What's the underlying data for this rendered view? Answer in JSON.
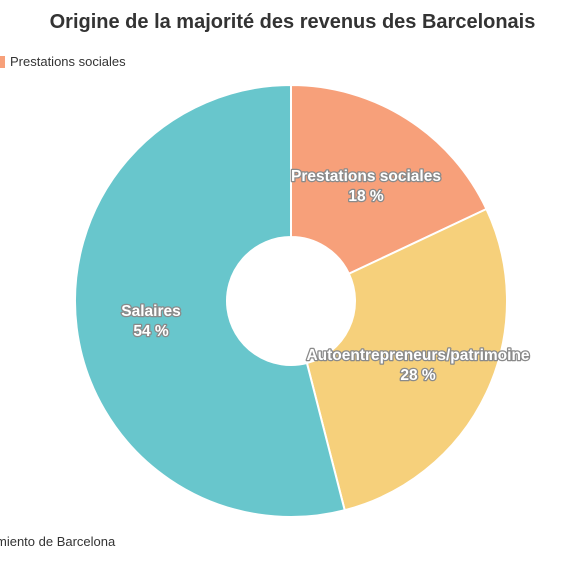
{
  "chart_data": {
    "type": "pie",
    "title": "Origine de la majorité des revenus des Barcelonais",
    "slices": [
      {
        "label": "Prestations sociales",
        "value": 18,
        "value_label": "18 %",
        "color": "#f7a07a"
      },
      {
        "label": "Autoentrepreneurs/patrimoine",
        "value": 28,
        "value_label": "28 %",
        "color": "#f6d07b"
      },
      {
        "label": "Salaires",
        "value": 54,
        "value_label": "54 %",
        "color": "#68c6cc"
      }
    ],
    "donut": true,
    "legend": [
      {
        "label": "Prestations sociales",
        "color": "#f7a07a"
      }
    ]
  },
  "source": "miento de Barcelona"
}
